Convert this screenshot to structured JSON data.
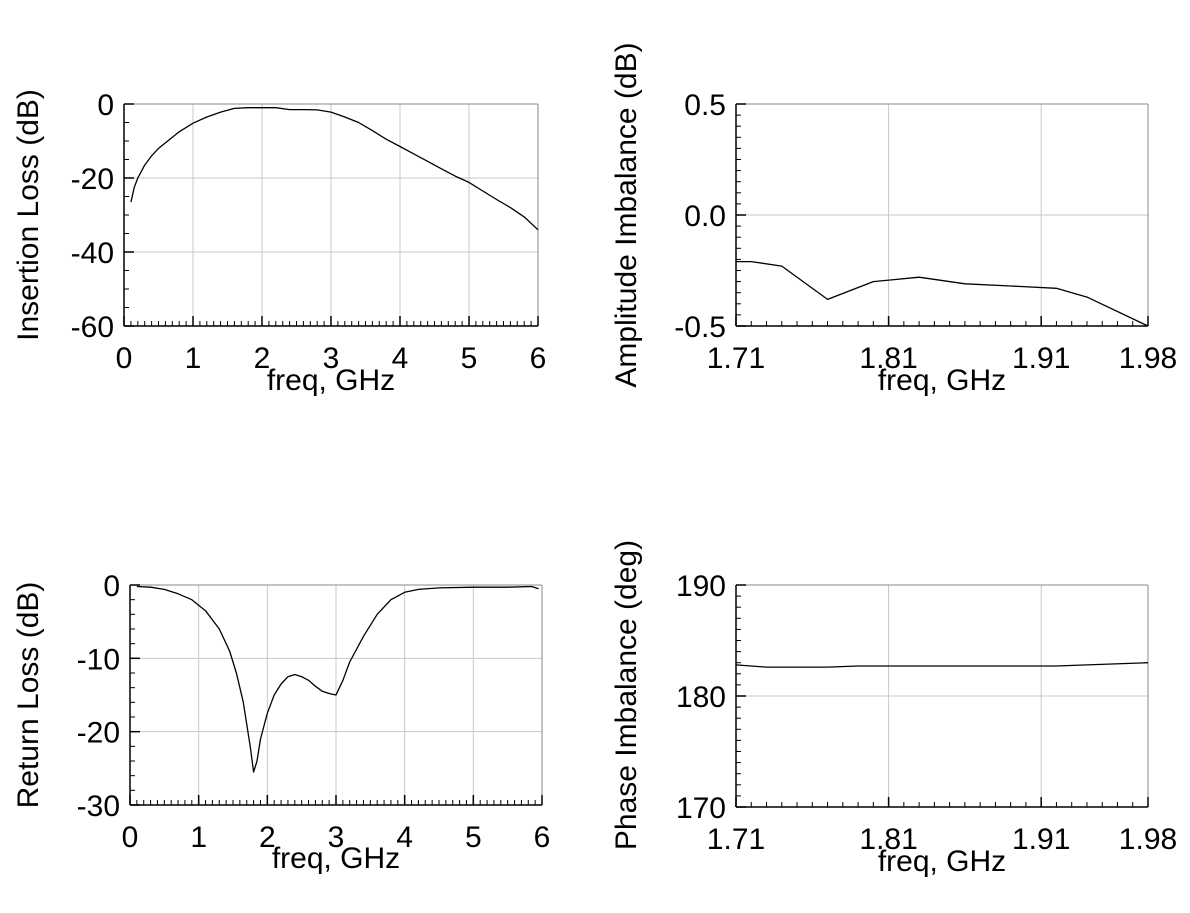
{
  "chart_data": [
    {
      "id": "insertion-loss",
      "type": "line",
      "xlabel": "freq, GHz",
      "ylabel": "Insertion Loss (dB)",
      "xlim": [
        0,
        6
      ],
      "ylim": [
        -60,
        0
      ],
      "xticks": [
        "0",
        "1",
        "2",
        "3",
        "4",
        "5",
        "6"
      ],
      "yticks": [
        "0",
        "-20",
        "-40",
        "-60"
      ],
      "grid": true,
      "series": [
        {
          "color": "#000000",
          "x": [
            0.1,
            0.15,
            0.2,
            0.3,
            0.4,
            0.5,
            0.6,
            0.8,
            1.0,
            1.2,
            1.4,
            1.6,
            1.8,
            2.0,
            2.2,
            2.4,
            2.6,
            2.8,
            3.0,
            3.2,
            3.4,
            3.6,
            3.8,
            4.0,
            4.2,
            4.4,
            4.6,
            4.8,
            5.0,
            5.2,
            5.4,
            5.6,
            5.8,
            6.0
          ],
          "y": [
            -26.5,
            -22.5,
            -20,
            -16.5,
            -14,
            -12,
            -10.5,
            -7.5,
            -5.2,
            -3.5,
            -2.2,
            -1.2,
            -1,
            -1,
            -1,
            -1.5,
            -1.5,
            -1.6,
            -2.2,
            -3.5,
            -5,
            -7.2,
            -9.5,
            -11.5,
            -13.5,
            -15.5,
            -17.5,
            -19.5,
            -21.2,
            -23.5,
            -25.8,
            -28,
            -30.5,
            -34
          ]
        }
      ]
    },
    {
      "id": "amplitude-imbalance",
      "type": "line",
      "xlabel": "freq, GHz",
      "ylabel": "Amplitude Imbalance (dB)",
      "xlim": [
        1.71,
        1.98
      ],
      "ylim": [
        -0.5,
        0.5
      ],
      "xticks": [
        "1.71",
        "1.81",
        "1.91",
        "1.98"
      ],
      "yticks": [
        "0.5",
        "0.0",
        "-0.5"
      ],
      "grid": true,
      "series": [
        {
          "color": "#000000",
          "x": [
            1.71,
            1.72,
            1.74,
            1.77,
            1.8,
            1.83,
            1.86,
            1.89,
            1.92,
            1.94,
            1.98
          ],
          "y": [
            -0.21,
            -0.21,
            -0.23,
            -0.38,
            -0.3,
            -0.28,
            -0.31,
            -0.32,
            -0.33,
            -0.37,
            -0.5
          ]
        }
      ]
    },
    {
      "id": "return-loss",
      "type": "line",
      "xlabel": "freq, GHz",
      "ylabel": "Return Loss (dB)",
      "xlim": [
        0,
        6
      ],
      "ylim": [
        -30,
        0
      ],
      "xticks": [
        "0",
        "1",
        "2",
        "3",
        "4",
        "5",
        "6"
      ],
      "yticks": [
        "0",
        "-10",
        "-20",
        "-30"
      ],
      "grid": true,
      "series": [
        {
          "color": "#000000",
          "x": [
            0.1,
            0.3,
            0.5,
            0.7,
            0.9,
            1.1,
            1.3,
            1.45,
            1.55,
            1.65,
            1.75,
            1.8,
            1.85,
            1.9,
            2.0,
            2.1,
            2.2,
            2.3,
            2.4,
            2.5,
            2.6,
            2.7,
            2.8,
            2.9,
            3.0,
            3.1,
            3.2,
            3.4,
            3.6,
            3.8,
            4.0,
            4.2,
            4.5,
            5.0,
            5.5,
            5.85,
            5.95
          ],
          "y": [
            -0.2,
            -0.3,
            -0.6,
            -1.2,
            -2,
            -3.5,
            -6,
            -9,
            -12,
            -16,
            -22,
            -25.5,
            -24,
            -21,
            -17.5,
            -15,
            -13.5,
            -12.5,
            -12.2,
            -12.5,
            -13,
            -13.8,
            -14.5,
            -14.8,
            -15,
            -13,
            -10.5,
            -7,
            -4,
            -2,
            -1,
            -0.6,
            -0.4,
            -0.3,
            -0.3,
            -0.2,
            -0.5
          ]
        }
      ]
    },
    {
      "id": "phase-imbalance",
      "type": "line",
      "xlabel": "freq, GHz",
      "ylabel": "Phase Imbalance (deg)",
      "xlim": [
        1.71,
        1.98
      ],
      "ylim": [
        170,
        190
      ],
      "xticks": [
        "1.71",
        "1.81",
        "1.91",
        "1.98"
      ],
      "yticks": [
        "190",
        "180",
        "170"
      ],
      "grid": true,
      "series": [
        {
          "color": "#000000",
          "x": [
            1.71,
            1.73,
            1.77,
            1.79,
            1.83,
            1.88,
            1.92,
            1.94,
            1.98
          ],
          "y": [
            182.8,
            182.6,
            182.6,
            182.7,
            182.7,
            182.7,
            182.7,
            182.8,
            183.0
          ]
        }
      ]
    }
  ]
}
